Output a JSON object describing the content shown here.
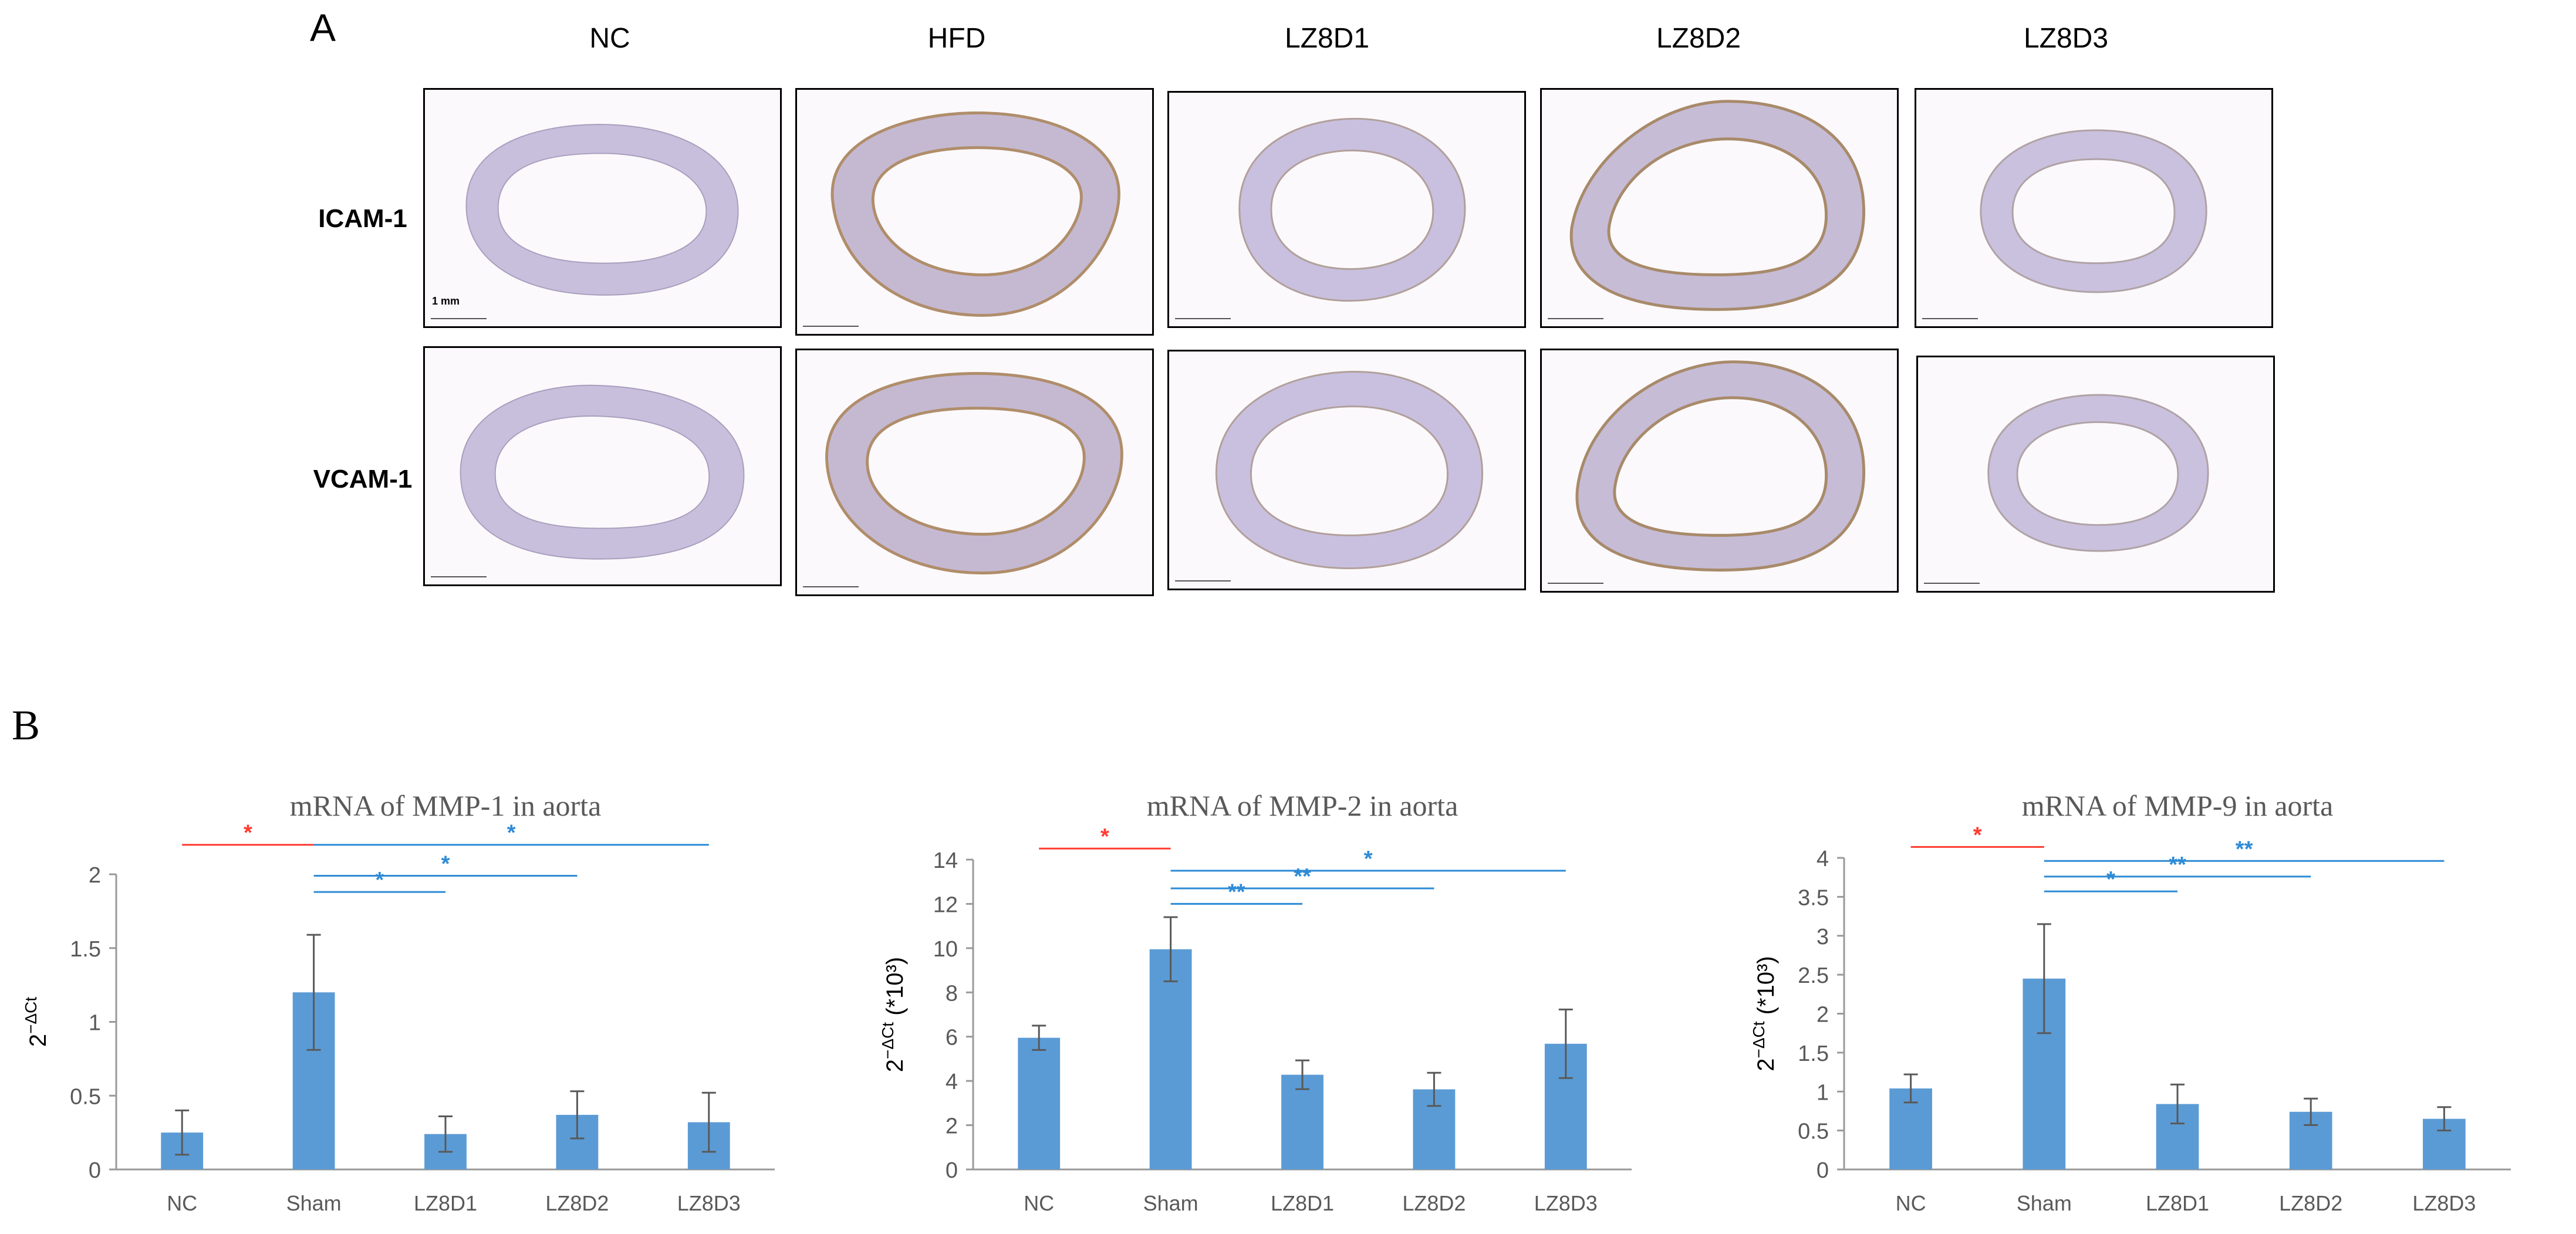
{
  "panel_a": {
    "letter": "A",
    "columns": [
      "NC",
      "HFD",
      "LZ8D1",
      "LZ8D2",
      "LZ8D3"
    ],
    "rows": [
      "ICAM-1",
      "VCAM-1"
    ],
    "scale_label": "1 mm"
  },
  "panel_b": {
    "letter": "B"
  },
  "colors": {
    "bar": "#5b9bd5",
    "sig_red": "#ff3b30",
    "sig_blue": "#2e8bd6",
    "axis": "#999999",
    "text": "#595959"
  },
  "chart_data": [
    {
      "type": "bar",
      "title": "mRNA of MMP-1 in aorta",
      "ylabel_base": "2",
      "ylabel_sup": "−ΔCt",
      "ylabel_suffix": "",
      "categories": [
        "NC",
        "Sham",
        "LZ8D1",
        "LZ8D2",
        "LZ8D3"
      ],
      "values": [
        0.25,
        1.2,
        0.24,
        0.37,
        0.32
      ],
      "errors": [
        0.15,
        0.39,
        0.12,
        0.16,
        0.2
      ],
      "ylim": [
        0,
        2
      ],
      "yticks": [
        "0",
        "0.5",
        "1",
        "1.5",
        "2"
      ],
      "ytick_values": [
        0,
        0.5,
        1,
        1.5,
        2
      ],
      "significance": [
        {
          "from": 0,
          "to": 1,
          "label": "*",
          "color": "red",
          "level": 2.2
        },
        {
          "from": 1,
          "to": 4,
          "label": "*",
          "color": "blue",
          "level": 2.2
        },
        {
          "from": 1,
          "to": 3,
          "label": "*",
          "color": "blue",
          "level": 1.99
        },
        {
          "from": 1,
          "to": 2,
          "label": "*",
          "color": "blue",
          "level": 1.88
        }
      ]
    },
    {
      "type": "bar",
      "title": "mRNA of  MMP-2 in aorta",
      "ylabel_base": "2",
      "ylabel_sup": "−ΔCt",
      "ylabel_suffix": " (*10³)",
      "categories": [
        "NC",
        "Sham",
        "LZ8D1",
        "LZ8D2",
        "LZ8D3"
      ],
      "values": [
        5.95,
        9.95,
        4.28,
        3.62,
        5.68
      ],
      "errors": [
        0.55,
        1.45,
        0.65,
        0.75,
        1.55
      ],
      "ylim": [
        0,
        14
      ],
      "yticks": [
        "0",
        "2",
        "4",
        "6",
        "8",
        "10",
        "12",
        "14"
      ],
      "ytick_values": [
        0,
        2,
        4,
        6,
        8,
        10,
        12,
        14
      ],
      "significance": [
        {
          "from": 0,
          "to": 1,
          "label": "*",
          "color": "red",
          "level": 14.5
        },
        {
          "from": 1,
          "to": 4,
          "label": "*",
          "color": "blue",
          "level": 13.5
        },
        {
          "from": 1,
          "to": 3,
          "label": "**",
          "color": "blue",
          "level": 12.7
        },
        {
          "from": 1,
          "to": 2,
          "label": "**",
          "color": "blue",
          "level": 12.0
        }
      ]
    },
    {
      "type": "bar",
      "title": "mRNA of MMP-9 in aorta",
      "ylabel_base": "2",
      "ylabel_sup": "−ΔCt",
      "ylabel_suffix": " (*10³)",
      "categories": [
        "NC",
        "Sham",
        "LZ8D1",
        "LZ8D2",
        "LZ8D3"
      ],
      "values": [
        1.04,
        2.45,
        0.84,
        0.74,
        0.65
      ],
      "errors": [
        0.18,
        0.7,
        0.25,
        0.17,
        0.15
      ],
      "ylim": [
        0,
        4
      ],
      "yticks": [
        "0",
        "0.5",
        "1",
        "1.5",
        "2",
        "2.5",
        "3",
        "3.5",
        "4"
      ],
      "ytick_values": [
        0,
        0.5,
        1,
        1.5,
        2,
        2.5,
        3,
        3.5,
        4
      ],
      "significance": [
        {
          "from": 0,
          "to": 1,
          "label": "*",
          "color": "red",
          "level": 4.14
        },
        {
          "from": 1,
          "to": 4,
          "label": "**",
          "color": "blue",
          "level": 3.96
        },
        {
          "from": 1,
          "to": 3,
          "label": "**",
          "color": "blue",
          "level": 3.76
        },
        {
          "from": 1,
          "to": 2,
          "label": "*",
          "color": "blue",
          "level": 3.57
        }
      ]
    }
  ]
}
